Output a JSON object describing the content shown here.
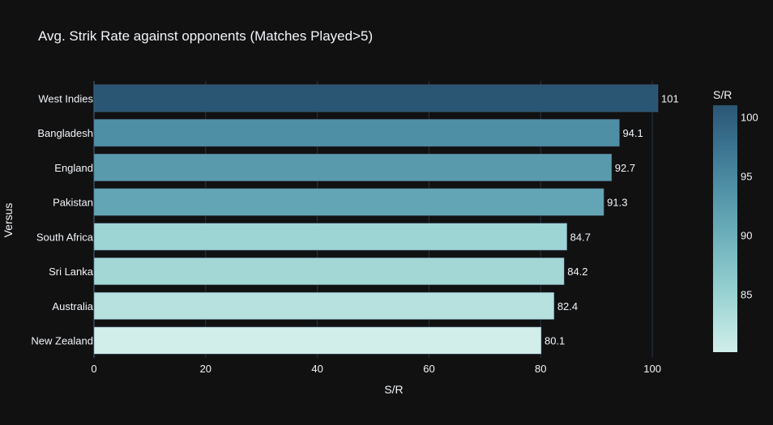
{
  "chart_data": {
    "type": "bar",
    "orientation": "horizontal",
    "title": "Avg. Strik Rate against opponents (Matches Played>5)",
    "xlabel": "S/R",
    "ylabel": "Versus",
    "categories": [
      "West Indies",
      "Bangladesh",
      "England",
      "Pakistan",
      "South Africa",
      "Sri Lanka",
      "Australia",
      "New Zealand"
    ],
    "values": [
      101,
      94.1,
      92.7,
      91.3,
      84.7,
      84.2,
      82.4,
      80.1
    ],
    "data_labels": [
      "101",
      "94.1",
      "92.7",
      "91.3",
      "84.7",
      "84.2",
      "82.4",
      "80.1"
    ],
    "xlim": [
      0,
      101
    ],
    "xticks": [
      0,
      20,
      40,
      60,
      80,
      100
    ],
    "grid": true,
    "colorscale": {
      "title": "S/R",
      "range": [
        80.1,
        101
      ],
      "ticks": [
        85,
        90,
        95,
        100
      ],
      "colors": [
        "#d1eeea",
        "#a8dbd9",
        "#85c4c9",
        "#68abb8",
        "#4f90a6",
        "#3b738f",
        "#2a5674"
      ]
    },
    "background": "#111111",
    "text_color": "#f2f5fa"
  }
}
